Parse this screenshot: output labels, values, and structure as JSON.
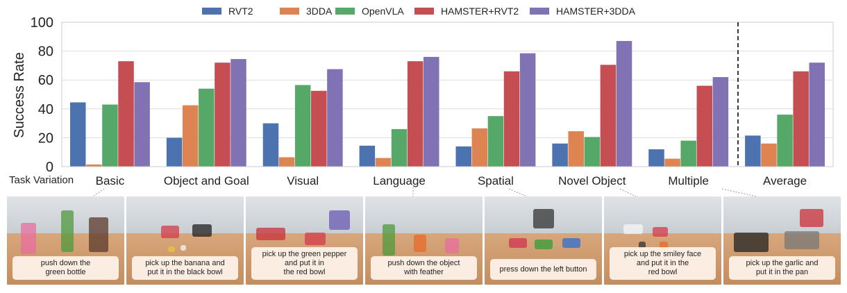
{
  "chart_data": {
    "type": "bar",
    "title": "",
    "xlabel": "Task Variation",
    "ylabel": "Success Rate",
    "ylim": [
      0,
      100
    ],
    "yticks": [
      0,
      20,
      40,
      60,
      80,
      100
    ],
    "grid": "horizontal",
    "legend_position": "top",
    "categories": [
      "Basic",
      "Object and Goal",
      "Visual",
      "Language",
      "Spatial",
      "Novel Object",
      "Multiple",
      "Average"
    ],
    "series": [
      {
        "name": "RVT2",
        "color": "#4c72b0",
        "values": [
          44.5,
          20,
          30,
          14.5,
          14,
          16,
          12,
          21.5
        ]
      },
      {
        "name": "3DDA",
        "color": "#dd8452",
        "values": [
          1.5,
          42.5,
          6.5,
          6,
          26.5,
          24.5,
          5.5,
          16
        ]
      },
      {
        "name": "OpenVLA",
        "color": "#55a868",
        "values": [
          43,
          54,
          56.5,
          26,
          35,
          20.5,
          18,
          36
        ]
      },
      {
        "name": "HAMSTER+RVT2",
        "color": "#c44e52",
        "values": [
          73,
          72,
          52.5,
          73,
          66,
          70.5,
          56,
          66
        ]
      },
      {
        "name": "HAMSTER+3DDA",
        "color": "#8172b3",
        "values": [
          58.5,
          74.5,
          67.5,
          76,
          78.5,
          87,
          62,
          72
        ]
      }
    ],
    "separator_before": "Average"
  },
  "photos": [
    {
      "caption": [
        "push down the",
        "green bottle"
      ]
    },
    {
      "caption": [
        "pick up the banana and",
        "put it in the black bowl"
      ]
    },
    {
      "caption": [
        "pick up the green pepper",
        "and put it in",
        "the red bowl"
      ]
    },
    {
      "caption": [
        "push down the object",
        "with feather"
      ]
    },
    {
      "caption": [
        "press down the left button"
      ]
    },
    {
      "caption": [
        "pick up the smiley face",
        "and put it in the",
        "red bowl"
      ]
    },
    {
      "caption": [
        "pick up the garlic and",
        "put it in the pan"
      ]
    }
  ]
}
